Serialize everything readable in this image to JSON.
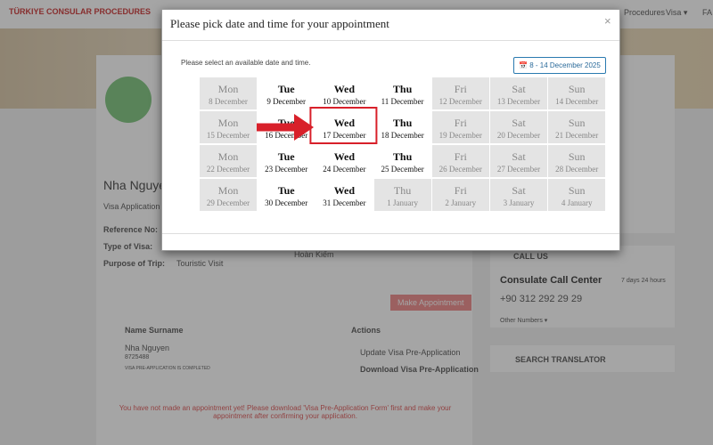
{
  "background": {
    "brand": "TÜRKIYE CONSULAR PROCEDURES",
    "nav": [
      "Procedures",
      "Visa ▾",
      "FA"
    ],
    "applicant_name": "Nha Nguyen",
    "section": "Visa Application",
    "fields": [
      {
        "label": "Reference No:",
        "value": ""
      },
      {
        "label": "Type of Visa:",
        "value": ""
      },
      {
        "label": "Purpose of Trip:",
        "value": "Touristic Visit"
      }
    ],
    "office": "Hoàn Kiếm",
    "make_appointment": "Make Appointment",
    "table": {
      "headers": [
        "Name Surname",
        "Actions"
      ],
      "row": {
        "name": "Nha Nguyen",
        "number": "8725488",
        "status": "VISA PRE-APPLICATION IS COMPLETED",
        "actions": [
          "Update Visa Pre-Application",
          "Download Visa Pre-Application"
        ]
      }
    },
    "notice": "You have not made an appointment yet! Please download 'Visa Pre-Application Form' first and make your appointment after confirming your application.",
    "sidebar": {
      "call_us": "CALL US",
      "call_center": "Consulate Call Center",
      "hours": "7 days 24 hours",
      "phone": "+90 312 292 29 29",
      "other": "Other Numbers ▾",
      "search": "SEARCH TRANSLATOR"
    }
  },
  "modal": {
    "title": "Please pick date and time for your appointment",
    "close": "×",
    "instruction": "Please select an available date and time.",
    "range": "8 - 14 December 2025",
    "highlight": {
      "week": 1,
      "day": 2
    },
    "weeks": [
      [
        {
          "day": "Mon",
          "date": "8 December",
          "available": false
        },
        {
          "day": "Tue",
          "date": "9 December",
          "available": true
        },
        {
          "day": "Wed",
          "date": "10 December",
          "available": true
        },
        {
          "day": "Thu",
          "date": "11 December",
          "available": true
        },
        {
          "day": "Fri",
          "date": "12 December",
          "available": false
        },
        {
          "day": "Sat",
          "date": "13 December",
          "available": false
        },
        {
          "day": "Sun",
          "date": "14 December",
          "available": false
        }
      ],
      [
        {
          "day": "Mon",
          "date": "15 December",
          "available": false
        },
        {
          "day": "Tue",
          "date": "16 December",
          "available": true
        },
        {
          "day": "Wed",
          "date": "17 December",
          "available": true
        },
        {
          "day": "Thu",
          "date": "18 December",
          "available": true
        },
        {
          "day": "Fri",
          "date": "19 December",
          "available": false
        },
        {
          "day": "Sat",
          "date": "20 December",
          "available": false
        },
        {
          "day": "Sun",
          "date": "21 December",
          "available": false
        }
      ],
      [
        {
          "day": "Mon",
          "date": "22 December",
          "available": false
        },
        {
          "day": "Tue",
          "date": "23 December",
          "available": true
        },
        {
          "day": "Wed",
          "date": "24 December",
          "available": true
        },
        {
          "day": "Thu",
          "date": "25 December",
          "available": true
        },
        {
          "day": "Fri",
          "date": "26 December",
          "available": false
        },
        {
          "day": "Sat",
          "date": "27 December",
          "available": false
        },
        {
          "day": "Sun",
          "date": "28 December",
          "available": false
        }
      ],
      [
        {
          "day": "Mon",
          "date": "29 December",
          "available": false
        },
        {
          "day": "Tue",
          "date": "30 December",
          "available": true
        },
        {
          "day": "Wed",
          "date": "31 December",
          "available": true
        },
        {
          "day": "Thu",
          "date": "1 January",
          "available": false
        },
        {
          "day": "Fri",
          "date": "2 January",
          "available": false
        },
        {
          "day": "Sat",
          "date": "3 January",
          "available": false
        },
        {
          "day": "Sun",
          "date": "4 January",
          "available": false
        }
      ]
    ]
  }
}
